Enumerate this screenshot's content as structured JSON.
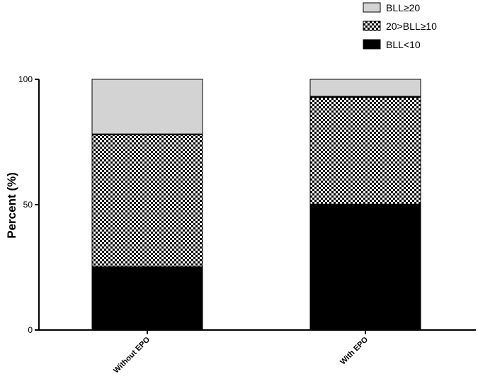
{
  "chart_data": {
    "type": "bar",
    "stacked": true,
    "categories": [
      "Without EPO",
      "With EPO"
    ],
    "series": [
      {
        "name": "BLL<10",
        "values": [
          25,
          50
        ],
        "fill": "#000000",
        "pattern": "solid"
      },
      {
        "name": "20>BLL≥10",
        "values": [
          53,
          43
        ],
        "fill": "#000000",
        "pattern": "checker"
      },
      {
        "name": "BLL≥20",
        "values": [
          22,
          7
        ],
        "fill": "#d3d3d3",
        "pattern": "solid"
      }
    ],
    "legend_order": [
      "BLL≥20",
      "20>BLL≥10",
      "BLL<10"
    ],
    "legend_position": "top-right",
    "ylabel": "Percent (%)",
    "xlabel": "",
    "ylim": [
      0,
      100
    ],
    "yticks": [
      0,
      50,
      100
    ],
    "ytick_labels": [
      "0",
      "50",
      "100"
    ],
    "grid": false
  }
}
